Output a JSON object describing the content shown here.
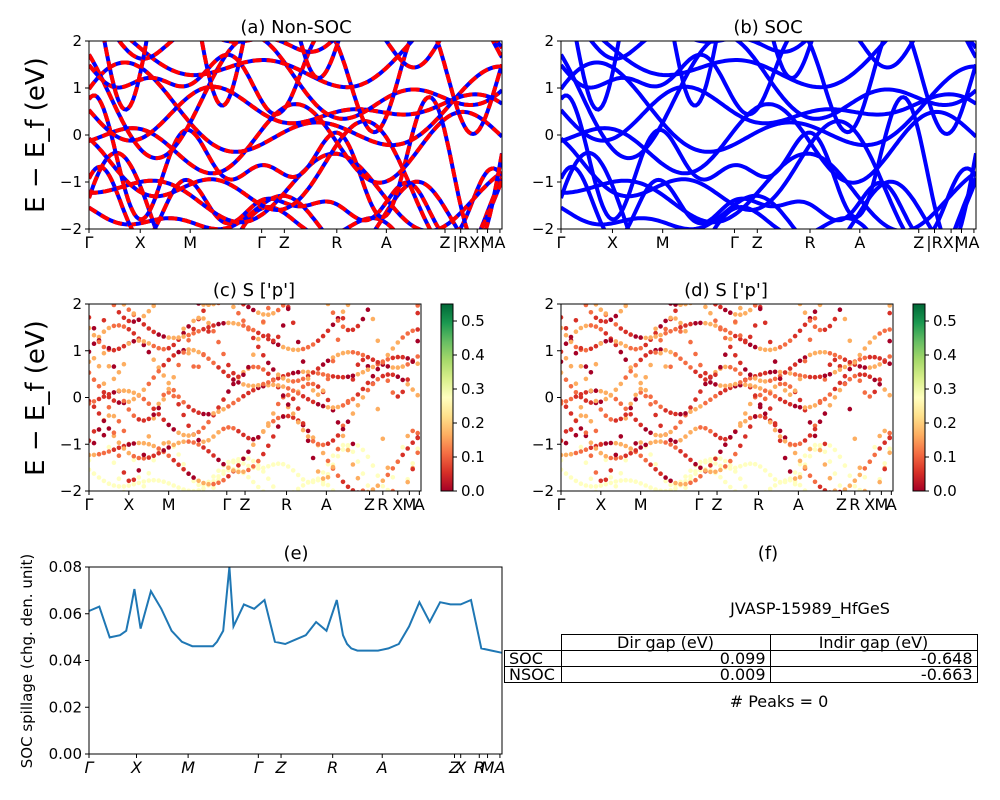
{
  "chart_data": [
    {
      "panel": "a",
      "type": "line",
      "title": "(a) Non-SOC",
      "ylabel": "E − E_f (eV)",
      "ylim": [
        -2,
        2
      ],
      "yticks": [
        "−2",
        "−1",
        "0",
        "1",
        "2"
      ],
      "xticks": [
        "Γ",
        "X",
        "M",
        "Γ",
        "Z",
        "R",
        "A",
        "Z",
        "|R",
        "X|",
        "M",
        "A"
      ],
      "series_colors": [
        "#ff0000",
        "#0000ff"
      ],
      "bands": [
        {
          "x": [
            0,
            0.5,
            1,
            1.5,
            2
          ],
          "y": [
            1.6,
            1.0,
            0.4,
            -0.3,
            -1.0
          ]
        },
        {
          "x": [
            0,
            0.5,
            1,
            1.5,
            2
          ],
          "y": [
            -0.2,
            0.3,
            0.9,
            1.4,
            1.9
          ]
        }
      ]
    },
    {
      "panel": "b",
      "type": "line",
      "title": "(b) SOC",
      "ylim": [
        -2,
        2
      ],
      "yticks": [
        "−2",
        "−1",
        "0",
        "1",
        "2"
      ],
      "xticks": [
        "Γ",
        "X",
        "M",
        "Γ",
        "Z",
        "R",
        "A",
        "Z",
        "|R",
        "X|",
        "M",
        "A"
      ],
      "series_colors": [
        "#0000ff"
      ]
    },
    {
      "panel": "c",
      "type": "scatter",
      "title": "(c)  S ['p']",
      "ylabel": "E − E_f (eV)",
      "ylim": [
        -2,
        2
      ],
      "yticks": [
        "−2",
        "−1",
        "0",
        "1",
        "2"
      ],
      "xticks": [
        "Γ",
        "X",
        "M",
        "Γ",
        "Z",
        "R",
        "A",
        "Z",
        "R",
        "X",
        "M",
        "A"
      ],
      "colorbar": {
        "ticks": [
          "0.0",
          "0.1",
          "0.2",
          "0.3",
          "0.4",
          "0.5"
        ],
        "range": [
          0,
          0.55
        ],
        "colormap": "RdYlGn"
      }
    },
    {
      "panel": "d",
      "type": "scatter",
      "title": "(d) S ['p']",
      "ylim": [
        -2,
        2
      ],
      "yticks": [
        "−2",
        "−1",
        "0",
        "1",
        "2"
      ],
      "xticks": [
        "Γ",
        "X",
        "M",
        "Γ",
        "Z",
        "R",
        "A",
        "Z",
        "R",
        "X",
        "M",
        "A"
      ],
      "colorbar": {
        "ticks": [
          "0.0",
          "0.1",
          "0.2",
          "0.3",
          "0.4",
          "0.5"
        ],
        "range": [
          0,
          0.55
        ],
        "colormap": "RdYlGn"
      }
    },
    {
      "panel": "e",
      "type": "line",
      "title": "(e)",
      "ylabel": "SOC spillage (chg. den. unit)",
      "ylim": [
        0,
        0.085
      ],
      "yticks": [
        "0.00",
        "0.02",
        "0.04",
        "0.06",
        "0.08"
      ],
      "xticks": [
        "Γ",
        "X",
        "M",
        "Γ",
        "Z",
        "R",
        "A",
        "Z",
        "X",
        "R",
        "M",
        "A"
      ],
      "series": [
        {
          "color": "#1f77b4",
          "x": [
            0,
            0.5,
            1,
            1.5,
            1.8,
            2,
            2.2,
            2.5,
            3,
            3.5,
            4,
            4.5,
            5,
            5.5,
            5.8,
            6,
            6.2,
            6.5,
            6.8,
            7,
            7.5,
            8,
            8.5,
            9,
            9.5,
            10,
            10.5,
            11,
            11.5,
            12,
            12.3,
            12.5,
            12.7,
            13,
            13.5,
            14,
            14.5,
            15,
            15.5,
            16,
            16.5,
            17,
            17.5,
            18,
            18.5,
            19,
            19.5,
            20
          ],
          "y": [
            0.065,
            0.067,
            0.053,
            0.054,
            0.056,
            0.065,
            0.075,
            0.057,
            0.074,
            0.066,
            0.056,
            0.051,
            0.049,
            0.049,
            0.049,
            0.049,
            0.051,
            0.056,
            0.085,
            0.058,
            0.068,
            0.066,
            0.07,
            0.051,
            0.05,
            0.052,
            0.054,
            0.06,
            0.056,
            0.07,
            0.054,
            0.05,
            0.048,
            0.047,
            0.047,
            0.047,
            0.048,
            0.05,
            0.058,
            0.069,
            0.06,
            0.069,
            0.068,
            0.068,
            0.07,
            0.048,
            0.047,
            0.046
          ]
        }
      ]
    }
  ],
  "table": {
    "title": "(f)",
    "material": "JVASP-15989_HfGeS",
    "columns": [
      "Dir gap (eV)",
      "Indir gap (eV)"
    ],
    "rows": [
      {
        "label": "SOC",
        "dir": "0.099",
        "indir": "-0.648"
      },
      {
        "label": "NSOC",
        "dir": "0.009",
        "indir": "-0.663"
      }
    ],
    "peaks": "# Peaks = 0"
  }
}
